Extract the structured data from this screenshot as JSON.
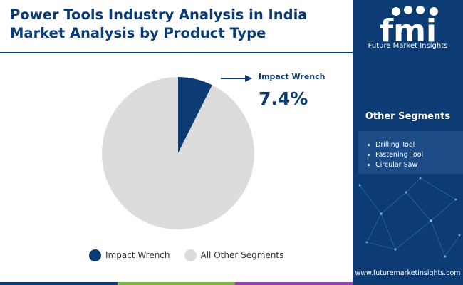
{
  "header": {
    "title": "Power Tools Industry Analysis in India Market Analysis by Product Type"
  },
  "chart_data": {
    "type": "pie",
    "title": "",
    "slices": [
      {
        "label": "Impact Wrench",
        "value": 7.4,
        "color": "#0d3b73"
      },
      {
        "label": "All Other Segments",
        "value": 92.6,
        "color": "#dcdcdc"
      }
    ],
    "legend_position": "bottom",
    "callout": {
      "label": "Impact Wrench",
      "value": "7.4%"
    }
  },
  "sidebar": {
    "logo_text": "fmi",
    "tagline": "Future Market Insights",
    "segments_title": "Other Segments",
    "segments": [
      "Drilling Tool",
      "Fastening Tool",
      "Circular Saw"
    ],
    "website": "www.futuremarketinsights.com"
  },
  "colors": {
    "brand_navy": "#0d3b73",
    "pie_other": "#dcdcdc",
    "bottom_bar": [
      "#0d3b73",
      "#7cb342",
      "#8e44ad",
      "#e67e22"
    ]
  }
}
